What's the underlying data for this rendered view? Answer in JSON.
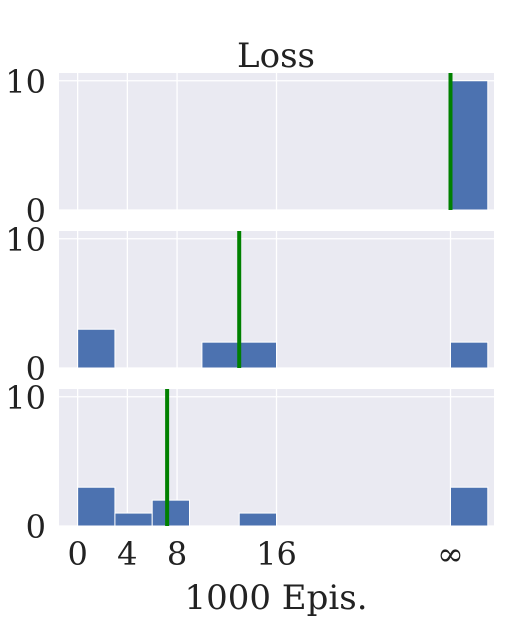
{
  "chart_data": {
    "type": "histogram",
    "title": "Loss",
    "xlabel": "1000 Epis.",
    "ylabel": "",
    "xticks": [
      {
        "value": 0,
        "label": "0"
      },
      {
        "value": 4,
        "label": "4"
      },
      {
        "value": 8,
        "label": "8"
      },
      {
        "value": 16,
        "label": "16"
      },
      {
        "value": 30,
        "label": "∞"
      }
    ],
    "xlim": [
      -1.5,
      33.5
    ],
    "grid": true,
    "colors": {
      "bar": "#4c72b0",
      "marker": "#008000",
      "panel_bg": "#eaeaf2",
      "grid": "#ffffff"
    },
    "panels": [
      {
        "ylim": [
          0,
          10.6
        ],
        "yticks": [
          {
            "value": 0,
            "label": "0"
          },
          {
            "value": 10,
            "label": "10"
          }
        ],
        "bins": [
          {
            "x0": 30,
            "x1": 33,
            "count": 10
          }
        ],
        "marker_x": 30
      },
      {
        "ylim": [
          0,
          10.6
        ],
        "yticks": [
          {
            "value": 0,
            "label": "0"
          },
          {
            "value": 10,
            "label": "10"
          }
        ],
        "bins": [
          {
            "x0": 0,
            "x1": 3,
            "count": 3
          },
          {
            "x0": 10,
            "x1": 13,
            "count": 2
          },
          {
            "x0": 13,
            "x1": 16,
            "count": 2
          },
          {
            "x0": 30,
            "x1": 33,
            "count": 2
          }
        ],
        "marker_x": 13
      },
      {
        "ylim": [
          0,
          10.6
        ],
        "yticks": [
          {
            "value": 0,
            "label": "0"
          },
          {
            "value": 10,
            "label": "10"
          }
        ],
        "bins": [
          {
            "x0": 0,
            "x1": 3,
            "count": 3
          },
          {
            "x0": 3,
            "x1": 6,
            "count": 1
          },
          {
            "x0": 6,
            "x1": 9,
            "count": 2
          },
          {
            "x0": 13,
            "x1": 16,
            "count": 1
          },
          {
            "x0": 30,
            "x1": 33,
            "count": 3
          }
        ],
        "marker_x": 7.2
      }
    ]
  }
}
